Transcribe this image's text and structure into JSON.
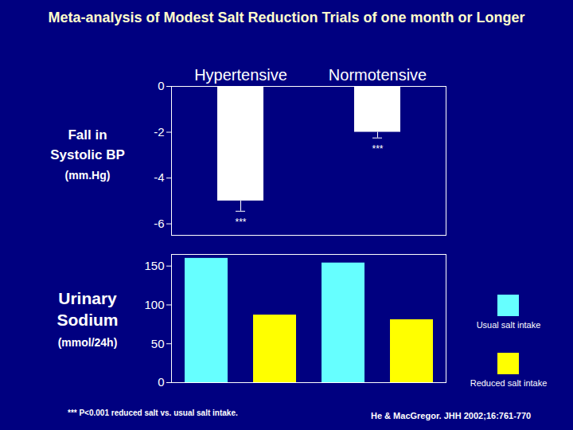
{
  "chart_data": [
    {
      "type": "bar",
      "title": "Meta-analysis of Modest Salt Reduction Trials of one month or Longer",
      "ylabel_lines": [
        "Fall in",
        "Systolic BP",
        "(mm.Hg)"
      ],
      "categories": [
        "Hypertensive",
        "Normotensive"
      ],
      "values": [
        -5.0,
        -2.0
      ],
      "errors": [
        0.45,
        0.25
      ],
      "annotations": [
        "***",
        "***"
      ],
      "color": "#ffffff",
      "ylim": [
        -6.5,
        0
      ],
      "yticks": [
        0,
        -2,
        -4,
        -6
      ]
    },
    {
      "type": "bar",
      "ylabel_lines": [
        "Urinary",
        "Sodium",
        "(mmol/24h)"
      ],
      "categories": [
        null,
        null
      ],
      "series": [
        {
          "name": "Usual salt intake",
          "color": "#66ffff",
          "values": [
            160,
            154
          ]
        },
        {
          "name": "Reduced salt intake",
          "color": "#ffff00",
          "values": [
            87,
            81
          ]
        }
      ],
      "ylim": [
        0,
        165
      ],
      "yticks": [
        0,
        50,
        100,
        150
      ],
      "legend": "right",
      "tick_labels": "y",
      "footnote": "*** P<0.001 reduced salt vs. usual salt intake.",
      "source": "He & MacGregor. JHH 2002;16:761-770"
    }
  ]
}
